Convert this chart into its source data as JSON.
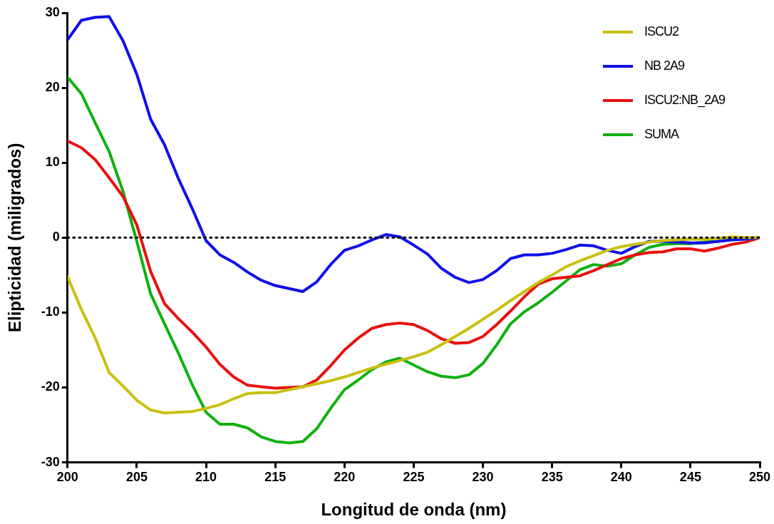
{
  "chart_data": {
    "type": "line",
    "xlabel": "Longitud de onda (nm)",
    "ylabel": "Elipticidad (miligrados)",
    "x": [
      200,
      201,
      202,
      203,
      204,
      205,
      206,
      207,
      208,
      209,
      210,
      211,
      212,
      213,
      214,
      215,
      216,
      217,
      218,
      219,
      220,
      221,
      222,
      223,
      224,
      225,
      226,
      227,
      228,
      229,
      230,
      231,
      232,
      233,
      234,
      235,
      236,
      237,
      238,
      239,
      240,
      241,
      242,
      243,
      244,
      245,
      246,
      247,
      248,
      249,
      250
    ],
    "series": [
      {
        "name": "ISCU2",
        "color": "#c8c010",
        "values": [
          -5.2,
          -9.6,
          -13.4,
          -18.0,
          -19.8,
          -21.7,
          -23.0,
          -23.4,
          -23.3,
          -23.2,
          -22.8,
          -22.3,
          -21.5,
          -20.8,
          -20.7,
          -20.7,
          -20.3,
          -19.9,
          -19.5,
          -19.1,
          -18.6,
          -18.0,
          -17.4,
          -16.9,
          -16.4,
          -15.9,
          -15.3,
          -14.3,
          -13.2,
          -12.1,
          -10.9,
          -9.7,
          -8.4,
          -7.2,
          -6.0,
          -5.0,
          -3.9,
          -3.1,
          -2.4,
          -1.7,
          -1.2,
          -0.9,
          -0.6,
          -0.4,
          -0.3,
          -0.2,
          -0.2,
          -0.1,
          0.1,
          0,
          0
        ]
      },
      {
        "name": "NB 2A9",
        "color": "#1010e8",
        "values": [
          26.4,
          29.0,
          29.4,
          29.5,
          26.3,
          21.8,
          15.8,
          12.4,
          7.9,
          3.9,
          -0.4,
          -2.3,
          -3.3,
          -4.6,
          -5.7,
          -6.4,
          -6.8,
          -7.2,
          -5.9,
          -3.6,
          -1.7,
          -1.1,
          -0.3,
          0.4,
          0.1,
          -1.0,
          -2.2,
          -4.1,
          -5.3,
          -6.0,
          -5.6,
          -4.4,
          -2.8,
          -2.3,
          -2.3,
          -2.1,
          -1.6,
          -1.0,
          -1.1,
          -1.7,
          -2.1,
          -1.2,
          -0.5,
          -0.5,
          -0.6,
          -0.7,
          -0.7,
          -0.5,
          -0.3,
          -0.2,
          0
        ]
      },
      {
        "name": "ISCU2:NB_2A9",
        "color": "#e81010",
        "values": [
          12.9,
          12.0,
          10.4,
          8.0,
          5.5,
          1.7,
          -4.5,
          -8.8,
          -10.8,
          -12.6,
          -14.6,
          -16.9,
          -18.6,
          -19.7,
          -19.9,
          -20.1,
          -20.0,
          -19.9,
          -19.0,
          -17.1,
          -15.0,
          -13.4,
          -12.1,
          -11.6,
          -11.4,
          -11.6,
          -12.4,
          -13.5,
          -14.1,
          -14.0,
          -13.2,
          -11.6,
          -9.8,
          -7.9,
          -6.2,
          -5.5,
          -5.3,
          -5.1,
          -4.4,
          -3.6,
          -2.8,
          -2.3,
          -2.0,
          -1.9,
          -1.5,
          -1.5,
          -1.8,
          -1.4,
          -0.9,
          -0.6,
          0
        ]
      },
      {
        "name": "SUMA",
        "color": "#10b010",
        "values": [
          21.4,
          19.2,
          15.3,
          11.5,
          6.2,
          -0.5,
          -7.5,
          -11.5,
          -15.4,
          -19.6,
          -23.3,
          -24.9,
          -24.9,
          -25.4,
          -26.6,
          -27.2,
          -27.4,
          -27.2,
          -25.5,
          -22.8,
          -20.3,
          -19.0,
          -17.6,
          -16.6,
          -16.1,
          -17.0,
          -17.9,
          -18.5,
          -18.7,
          -18.3,
          -16.8,
          -14.3,
          -11.5,
          -9.9,
          -8.7,
          -7.3,
          -5.8,
          -4.3,
          -3.6,
          -3.8,
          -3.5,
          -2.3,
          -1.3,
          -0.9,
          -0.8,
          -0.8,
          -0.6,
          -0.5,
          -0.2,
          null,
          null
        ]
      }
    ],
    "xlim": [
      200,
      250
    ],
    "xticks": [
      200,
      205,
      210,
      215,
      220,
      225,
      230,
      235,
      240,
      245,
      250
    ],
    "ylim": [
      -30,
      30
    ],
    "yticks": [
      -30,
      -20,
      -10,
      0,
      10,
      20,
      30
    ],
    "ref_lines": [
      {
        "axis": "y",
        "value": 0,
        "color": "#000000",
        "line_style": "dotted"
      }
    ],
    "grid": false,
    "legend": "top right",
    "marker": "none",
    "line_style": "solid"
  }
}
